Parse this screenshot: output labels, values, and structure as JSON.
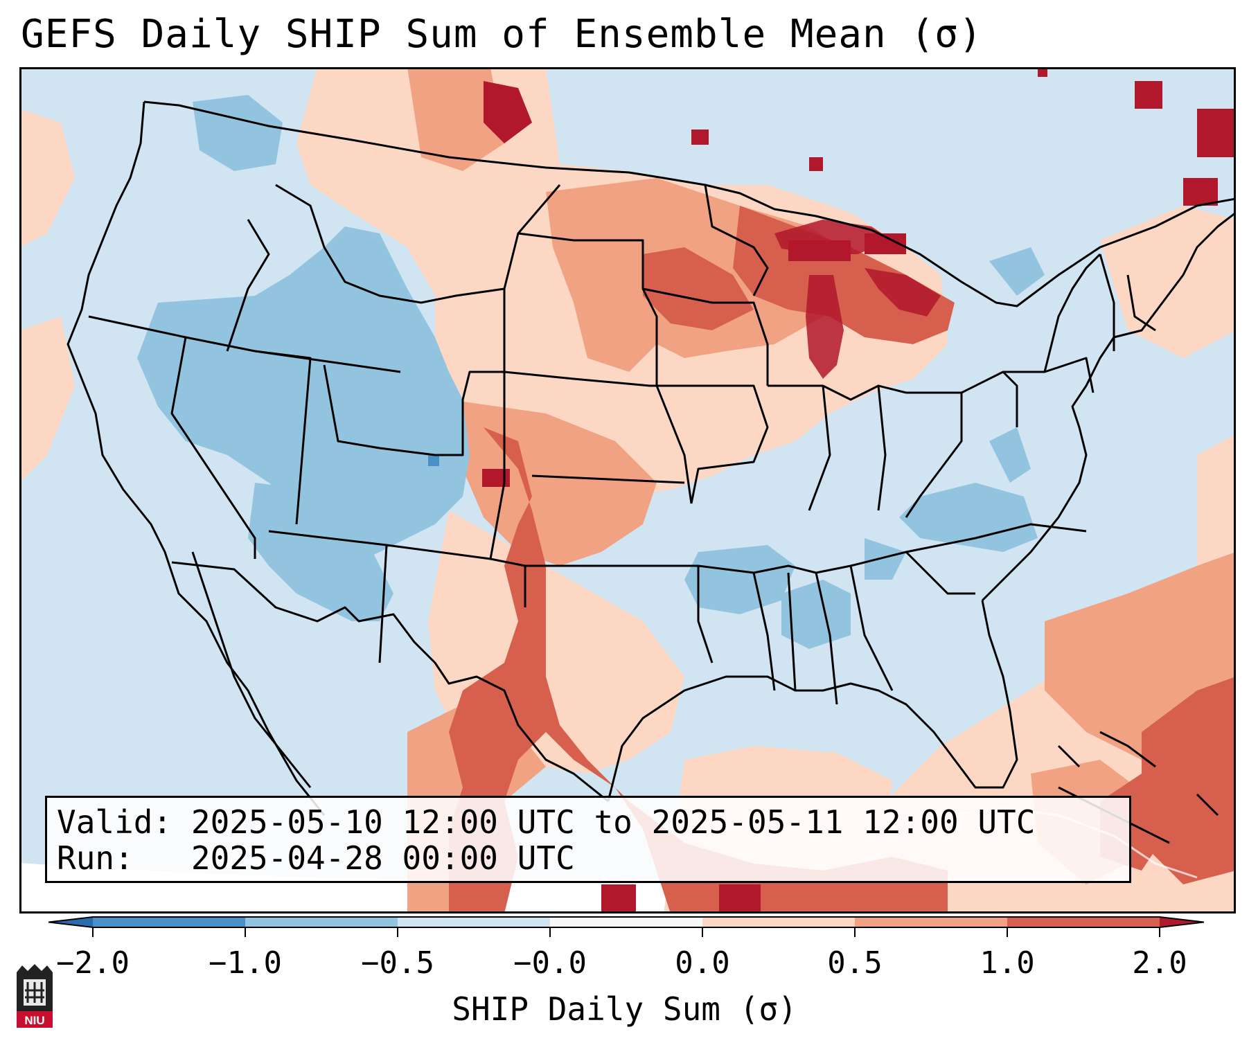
{
  "title": "GEFS Daily SHIP Sum of Ensemble Mean (σ)",
  "info_box": {
    "valid_label": "Valid:",
    "valid_value": "2025-05-10 12:00 UTC to 2025-05-11 12:00 UTC",
    "run_label": "Run:",
    "run_value": "2025-04-28 00:00 UTC"
  },
  "colorbar": {
    "label": "SHIP Daily Sum (σ)",
    "ticks": [
      "−2.0",
      "−1.0",
      "−0.5",
      "−0.0",
      "0.0",
      "0.5",
      "1.0",
      "2.0"
    ],
    "colors": {
      "below_min": "#2b6cb0",
      "neg_2_to_neg_1": "#4a90c8",
      "neg_1_to_neg_05": "#93c4df",
      "neg_05_to_0": "#d0e4f1",
      "zero_band": "#f7f7f7",
      "pos_0_to_05": "#fcd8c4",
      "pos_05_to_1": "#f1a283",
      "pos_1_to_2": "#d6604d",
      "above_max": "#b2182b"
    }
  },
  "map": {
    "projection": "Lambert Conformal (CONUS)",
    "background_color": "#d0e4f1",
    "regions": [
      {
        "name": "Northern Plains",
        "level": "pos_0_to_05"
      },
      {
        "name": "Upper Midwest / Great Lakes",
        "level": "pos_1_to_2"
      },
      {
        "name": "Southern High Plains",
        "level": "pos_1_to_2"
      },
      {
        "name": "Intermountain West",
        "level": "neg_1_to_neg_05"
      },
      {
        "name": "Southeast US",
        "level": "neg_05_to_0"
      },
      {
        "name": "Western Atlantic",
        "level": "pos_05_to_1"
      }
    ]
  },
  "logo": {
    "text": "NIU"
  }
}
